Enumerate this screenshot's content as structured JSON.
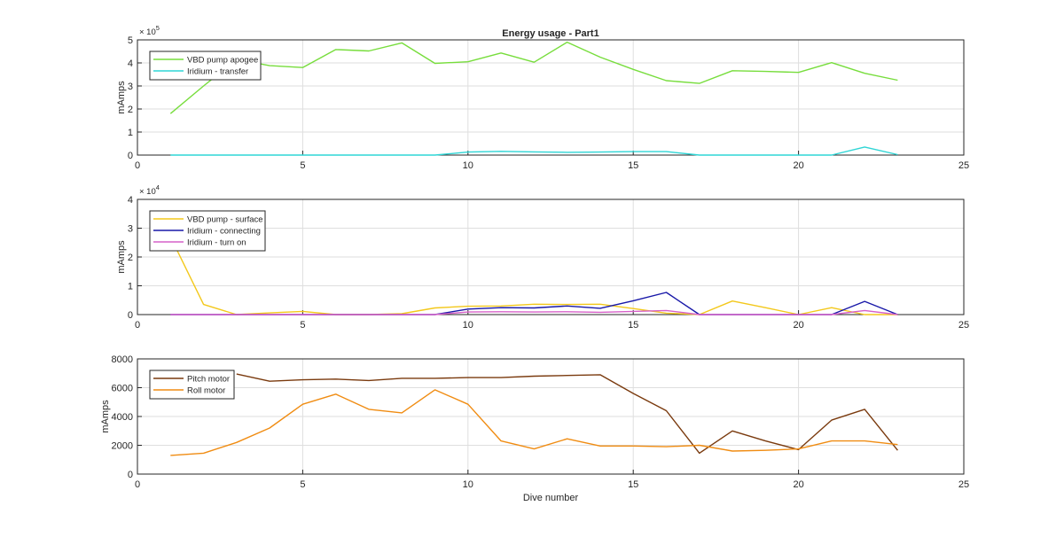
{
  "title": "Energy usage - Part1",
  "xlabel": "Dive number",
  "chart_data": [
    {
      "type": "line",
      "title": "Energy usage - Part1",
      "xlabel": "",
      "ylabel": "mAmps",
      "xlim": [
        0,
        25
      ],
      "ylim": [
        0,
        500000
      ],
      "xticks": [
        "0",
        "5",
        "10",
        "15",
        "20",
        "25"
      ],
      "yticks": [
        "0",
        "1",
        "2",
        "3",
        "4",
        "5"
      ],
      "y_exponent": "× 10^5",
      "grid": true,
      "legend_position": "upper-left",
      "x": [
        1,
        2,
        3,
        4,
        5,
        6,
        7,
        8,
        9,
        10,
        11,
        12,
        13,
        14,
        15,
        16,
        17,
        18,
        19,
        20,
        21,
        22,
        23
      ],
      "series": [
        {
          "name": "VBD pump apogee",
          "color": "#77dd3c",
          "values": [
            180000,
            300000,
            415000,
            388000,
            380000,
            458000,
            452000,
            487000,
            398000,
            405000,
            443000,
            403000,
            490000,
            425000,
            372000,
            323000,
            311000,
            366000,
            363000,
            359000,
            401000,
            355000,
            325000
          ]
        },
        {
          "name": "Iridium - transfer",
          "color": "#2ed5d5",
          "values": [
            0,
            0,
            0,
            0,
            0,
            0,
            0,
            0,
            0,
            13000,
            16000,
            14000,
            12000,
            13000,
            15000,
            15000,
            0,
            0,
            0,
            0,
            0,
            35000,
            2000
          ]
        }
      ]
    },
    {
      "type": "line",
      "xlabel": "",
      "ylabel": "mAmps",
      "xlim": [
        0,
        25
      ],
      "ylim": [
        0,
        40000
      ],
      "xticks": [
        "0",
        "5",
        "10",
        "15",
        "20",
        "25"
      ],
      "yticks": [
        "0",
        "1",
        "2",
        "3",
        "4"
      ],
      "y_exponent": "× 10^4",
      "grid": true,
      "legend_position": "upper-left",
      "x": [
        1,
        2,
        3,
        4,
        5,
        6,
        7,
        8,
        9,
        10,
        11,
        12,
        13,
        14,
        15,
        16,
        17,
        18,
        19,
        20,
        21,
        22,
        23
      ],
      "series": [
        {
          "name": "VBD pump - surface",
          "color": "#f3c81b",
          "values": [
            27000,
            3500,
            0,
            600,
            1100,
            0,
            0,
            300,
            2300,
            2900,
            3000,
            3600,
            3500,
            3600,
            2100,
            500,
            0,
            4700,
            2400,
            0,
            2400,
            0,
            0
          ]
        },
        {
          "name": "Iridium - connecting",
          "color": "#1818a8",
          "values": [
            0,
            0,
            0,
            0,
            0,
            0,
            0,
            0,
            0,
            1900,
            2400,
            2300,
            3000,
            2200,
            4800,
            7700,
            0,
            0,
            0,
            0,
            0,
            4600,
            0
          ]
        },
        {
          "name": "Iridium - turn on",
          "color": "#d660c8",
          "values": [
            0,
            0,
            0,
            0,
            0,
            0,
            0,
            0,
            0,
            900,
            1000,
            900,
            1000,
            800,
            1100,
            1400,
            0,
            0,
            0,
            0,
            0,
            1400,
            0
          ]
        }
      ]
    },
    {
      "type": "line",
      "xlabel": "Dive number",
      "ylabel": "mAmps",
      "xlim": [
        0,
        25
      ],
      "ylim": [
        0,
        8000
      ],
      "xticks": [
        "0",
        "5",
        "10",
        "15",
        "20",
        "25"
      ],
      "yticks": [
        "0",
        "2000",
        "4000",
        "6000",
        "8000"
      ],
      "y_exponent": "",
      "grid": true,
      "legend_position": "upper-left",
      "x": [
        1,
        2,
        3,
        4,
        5,
        6,
        7,
        8,
        9,
        10,
        11,
        12,
        13,
        14,
        15,
        16,
        17,
        18,
        19,
        20,
        21,
        22,
        23
      ],
      "series": [
        {
          "name": "Pitch motor",
          "color": "#7a3a0e",
          "values": [
            null,
            null,
            6950,
            6450,
            6550,
            6600,
            6500,
            6650,
            6650,
            6700,
            6700,
            6800,
            6850,
            6900,
            5600,
            4400,
            1450,
            3000,
            2300,
            1700,
            3750,
            4500,
            1650
          ]
        },
        {
          "name": "Roll motor",
          "color": "#f08c12",
          "values": [
            1300,
            1450,
            2200,
            3200,
            4850,
            5550,
            4500,
            4250,
            5850,
            4850,
            2300,
            1750,
            2450,
            1950,
            1950,
            1900,
            2000,
            1600,
            1650,
            1750,
            2300,
            2300,
            2050
          ]
        }
      ]
    }
  ]
}
